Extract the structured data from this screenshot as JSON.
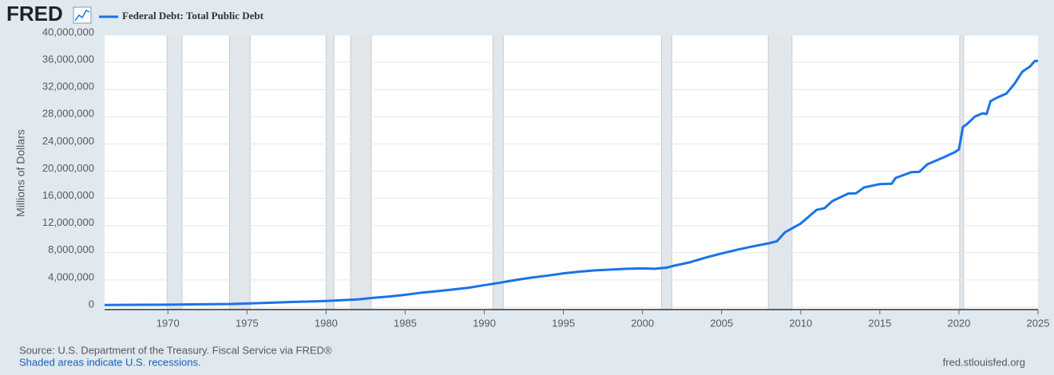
{
  "chart_data": {
    "type": "line",
    "logo": "FRED",
    "ylabel": "Millions of Dollars",
    "source": "Source: U.S. Department of the Treasury. Fiscal Service via FRED®",
    "note": "Shaded areas indicate U.S. recessions.",
    "site": "fred.stlouisfed.org",
    "xlim": [
      1966,
      2025
    ],
    "xticks": [
      1970,
      1975,
      1980,
      1985,
      1990,
      1995,
      2000,
      2005,
      2010,
      2015,
      2020,
      2025
    ],
    "ylim": [
      0,
      40000000
    ],
    "yticks": [
      0,
      {
        "value": 4000000,
        "label": "4,000,000"
      },
      {
        "value": 8000000,
        "label": "8,000,000"
      },
      {
        "value": 12000000,
        "label": "12,000,000"
      },
      {
        "value": 16000000,
        "label": "16,000,000"
      },
      {
        "value": 20000000,
        "label": "20,000,000"
      },
      {
        "value": 24000000,
        "label": "24,000,000"
      },
      {
        "value": 28000000,
        "label": "28,000,000"
      },
      {
        "value": 32000000,
        "label": "32,000,000"
      },
      {
        "value": 36000000,
        "label": "36,000,000"
      },
      {
        "value": 40000000,
        "label": "40,000,000"
      }
    ],
    "grid": true,
    "recessions": [
      [
        1969.95,
        1970.9
      ],
      [
        1973.9,
        1975.2
      ],
      [
        1980.0,
        1980.5
      ],
      [
        1981.55,
        1982.85
      ],
      [
        1990.55,
        1991.2
      ],
      [
        2001.2,
        2001.85
      ],
      [
        2007.95,
        2009.45
      ],
      [
        2020.05,
        2020.3
      ]
    ],
    "x": [
      1966,
      1968,
      1970,
      1972,
      1974,
      1976,
      1978,
      1980,
      1982,
      1983,
      1984,
      1985,
      1986,
      1987,
      1988,
      1989,
      1990,
      1991,
      1992,
      1993,
      1994,
      1995,
      1996,
      1997,
      1998,
      1999,
      2000,
      2000.75,
      2001.5,
      2002,
      2003,
      2004,
      2005,
      2006,
      2007,
      2008,
      2008.5,
      2009,
      2010,
      2011,
      2011.5,
      2012,
      2013,
      2013.5,
      2014,
      2015,
      2015.75,
      2016,
      2017,
      2017.5,
      2018,
      2019,
      2019.75,
      2020,
      2020.25,
      2020.5,
      2021,
      2021.5,
      2021.75,
      2022,
      2022.5,
      2023,
      2023.5,
      2024,
      2024.5,
      2024.8,
      2025
    ],
    "series": [
      {
        "name": "Federal Debt: Total Public Debt",
        "color": "#1a73e8",
        "values": [
          320000,
          350000,
          370000,
          425000,
          470000,
          620000,
          770000,
          908000,
          1142000,
          1380000,
          1570000,
          1823000,
          2120000,
          2350000,
          2600000,
          2860000,
          3233000,
          3600000,
          4000000,
          4350000,
          4640000,
          4974000,
          5220000,
          5410000,
          5530000,
          5650000,
          5700000,
          5650000,
          5800000,
          6100000,
          6600000,
          7300000,
          7900000,
          8450000,
          8950000,
          9400000,
          9700000,
          11000000,
          12300000,
          14300000,
          14550000,
          15600000,
          16700000,
          16750000,
          17600000,
          18100000,
          18150000,
          19000000,
          19850000,
          19900000,
          21000000,
          22000000,
          22800000,
          23200000,
          26500000,
          26900000,
          28000000,
          28500000,
          28400000,
          30300000,
          30900000,
          31400000,
          32800000,
          34600000,
          35400000,
          36200000,
          36200000
        ]
      }
    ]
  }
}
